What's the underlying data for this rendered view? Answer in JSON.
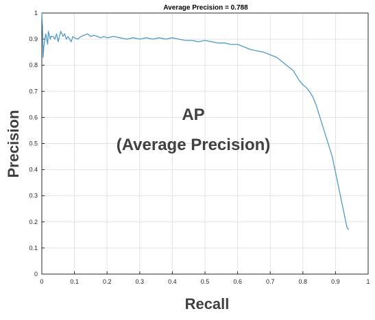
{
  "chart_data": {
    "type": "line",
    "title": "Average Precision = 0.788",
    "xlabel": "Recall",
    "ylabel": "Precision",
    "xlim": [
      0,
      1
    ],
    "ylim": [
      0,
      1
    ],
    "grid": true,
    "x_ticks": [
      "0",
      "0.1",
      "0.2",
      "0.3",
      "0.4",
      "0.5",
      "0.6",
      "0.7",
      "0.8",
      "0.9",
      "1"
    ],
    "y_ticks": [
      "0",
      "0.1",
      "0.2",
      "0.3",
      "0.4",
      "0.5",
      "0.6",
      "0.7",
      "0.8",
      "0.9",
      "1"
    ],
    "annotation": [
      "AP",
      "(Average Precision)"
    ],
    "line_color": "#4d9ac7",
    "series": [
      {
        "x": [
          0,
          0.002,
          0.004,
          0.006,
          0.012,
          0.018,
          0.02,
          0.026,
          0.028,
          0.035,
          0.04,
          0.045,
          0.05,
          0.058,
          0.065,
          0.07,
          0.075,
          0.08,
          0.085,
          0.09,
          0.095,
          0.1,
          0.11,
          0.12,
          0.13,
          0.14,
          0.15,
          0.16,
          0.17,
          0.18,
          0.19,
          0.2,
          0.22,
          0.24,
          0.26,
          0.28,
          0.3,
          0.32,
          0.34,
          0.36,
          0.38,
          0.4,
          0.42,
          0.44,
          0.46,
          0.48,
          0.5,
          0.52,
          0.54,
          0.56,
          0.58,
          0.6,
          0.62,
          0.64,
          0.66,
          0.68,
          0.7,
          0.72,
          0.74,
          0.75,
          0.76,
          0.77,
          0.78,
          0.79,
          0.8,
          0.81,
          0.82,
          0.83,
          0.84,
          0.845,
          0.85,
          0.855,
          0.86,
          0.865,
          0.87,
          0.875,
          0.88,
          0.885,
          0.89,
          0.895,
          0.9,
          0.905,
          0.91,
          0.915,
          0.92,
          0.925,
          0.93,
          0.935,
          0.94
        ],
        "y": [
          1.0,
          0.95,
          0.83,
          0.87,
          0.92,
          0.88,
          0.93,
          0.9,
          0.91,
          0.91,
          0.9,
          0.92,
          0.89,
          0.93,
          0.91,
          0.92,
          0.9,
          0.91,
          0.9,
          0.89,
          0.91,
          0.905,
          0.9,
          0.91,
          0.915,
          0.92,
          0.91,
          0.915,
          0.91,
          0.905,
          0.91,
          0.905,
          0.91,
          0.905,
          0.9,
          0.905,
          0.9,
          0.905,
          0.9,
          0.905,
          0.9,
          0.905,
          0.9,
          0.895,
          0.895,
          0.89,
          0.895,
          0.89,
          0.885,
          0.885,
          0.88,
          0.88,
          0.87,
          0.86,
          0.855,
          0.85,
          0.84,
          0.83,
          0.81,
          0.8,
          0.79,
          0.78,
          0.76,
          0.74,
          0.725,
          0.715,
          0.7,
          0.68,
          0.65,
          0.63,
          0.61,
          0.59,
          0.57,
          0.55,
          0.53,
          0.51,
          0.49,
          0.47,
          0.45,
          0.42,
          0.39,
          0.36,
          0.33,
          0.3,
          0.27,
          0.24,
          0.21,
          0.18,
          0.17
        ]
      }
    ]
  }
}
